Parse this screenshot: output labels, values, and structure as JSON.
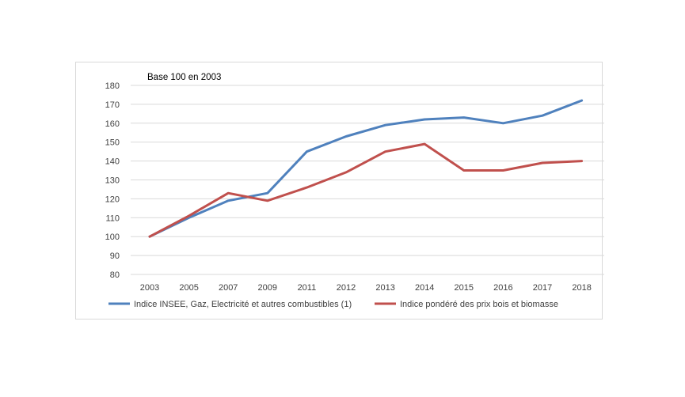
{
  "chart_data": {
    "type": "line",
    "annotation": "Base 100 en 2003",
    "categories": [
      "2003",
      "2005",
      "2007",
      "2009",
      "2011",
      "2012",
      "2013",
      "2014",
      "2015",
      "2016",
      "2017",
      "2018"
    ],
    "ylim": [
      80,
      180
    ],
    "yticks": [
      80,
      90,
      100,
      110,
      120,
      130,
      140,
      150,
      160,
      170,
      180
    ],
    "grid": true,
    "legend_position": "bottom",
    "series": [
      {
        "name": "Indice INSEE, Gaz, Electricité et autres combustibles (1)",
        "color": "#4f81bd",
        "values": [
          100,
          110,
          119,
          123,
          145,
          153,
          159,
          162,
          163,
          160,
          164,
          172
        ]
      },
      {
        "name": "Indice pondéré des prix bois et biomasse",
        "color": "#c0504d",
        "values": [
          100,
          111,
          123,
          119,
          126,
          134,
          145,
          149,
          135,
          135,
          139,
          140
        ]
      }
    ]
  }
}
